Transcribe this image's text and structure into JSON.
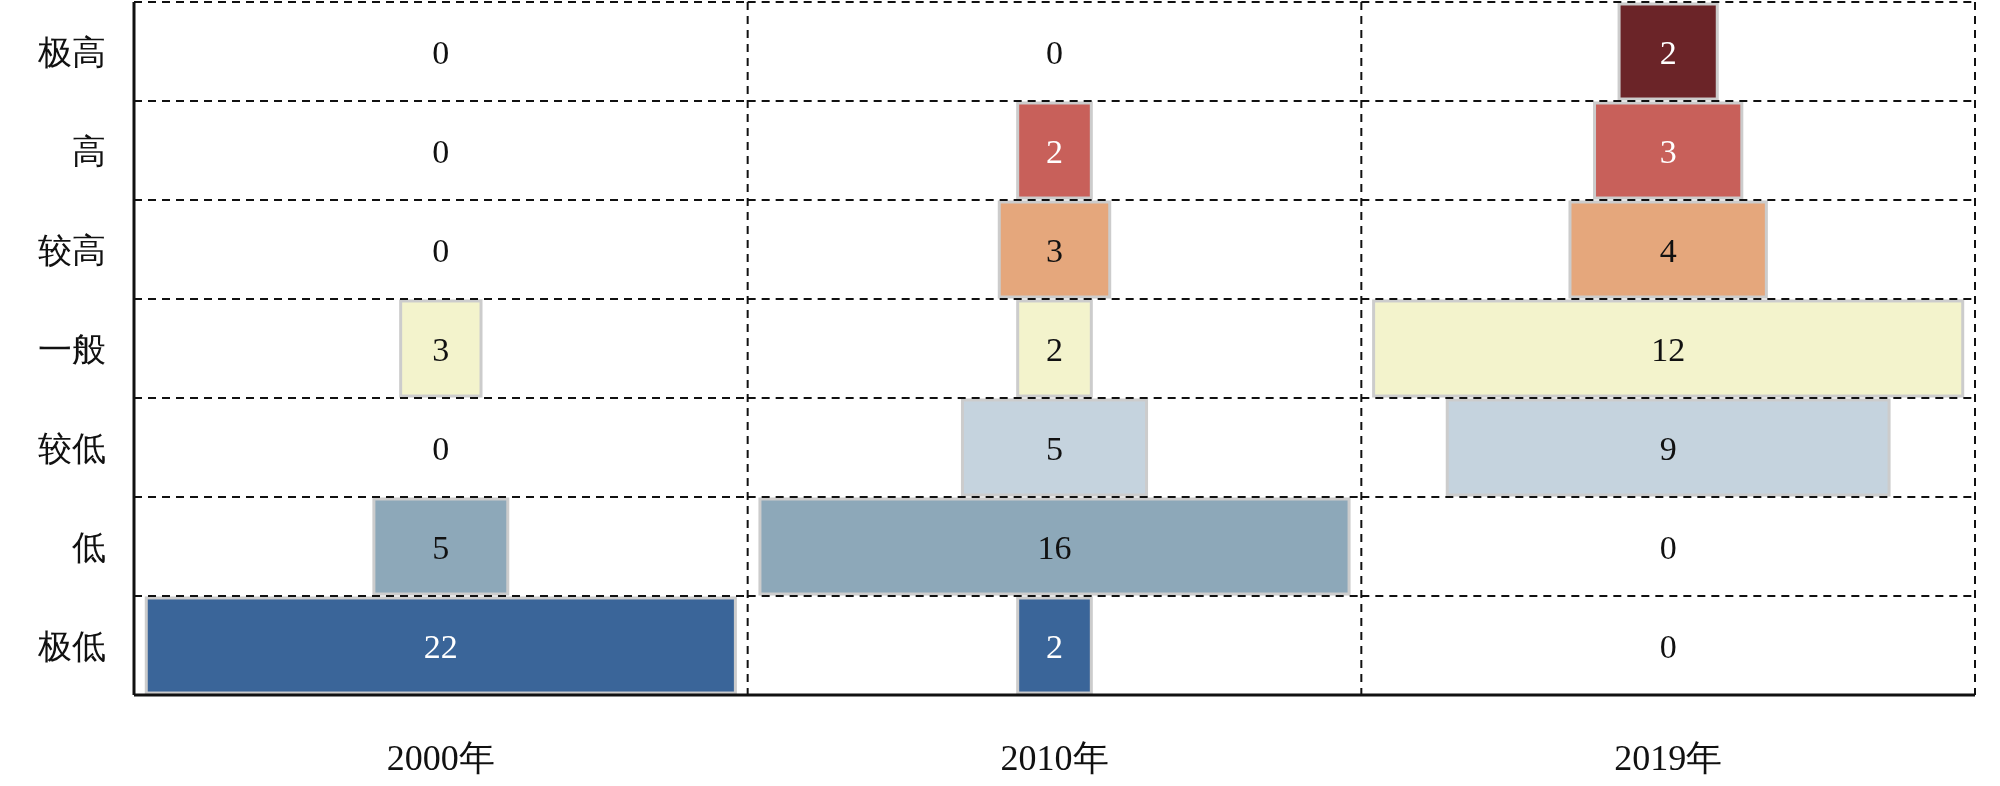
{
  "chart_data": [
    {
      "type": "other",
      "xlabel": "2000年",
      "categories": [
        "极高",
        "高",
        "较高",
        "一般",
        "较低",
        "低",
        "极低"
      ],
      "values": [
        0,
        0,
        0,
        3,
        0,
        5,
        22
      ],
      "colors": [
        "#6b2428",
        "#c8605a",
        "#e5a77c",
        "#f3f3cc",
        "#c5d3de",
        "#8da8b9",
        "#3a6599"
      ],
      "data_labels": true
    },
    {
      "type": "other",
      "xlabel": "2010年",
      "values": [
        0,
        2,
        3,
        2,
        5,
        16,
        2
      ],
      "colors": [
        "#6b2428",
        "#c8605a",
        "#e5a77c",
        "#f3f3cc",
        "#c5d3de",
        "#8da8b9",
        "#3a6599"
      ],
      "data_labels": true
    },
    {
      "type": "other",
      "xlabel": "2019年",
      "values": [
        2,
        3,
        4,
        12,
        9,
        0,
        0
      ],
      "colors": [
        "#6b2428",
        "#c8605a",
        "#e5a77c",
        "#f3f3cc",
        "#c5d3de",
        "#8da8b9",
        "#3a6599"
      ],
      "data_labels": true
    }
  ]
}
